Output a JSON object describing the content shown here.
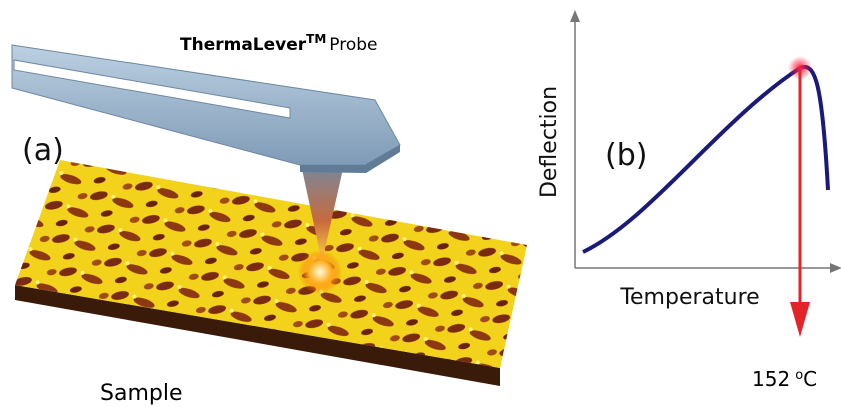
{
  "panel_a": {
    "title": {
      "name": "ThermaLever",
      "superscript": "TM",
      "suffix": "Probe"
    },
    "label": "(a)",
    "sample_label": "Sample"
  },
  "panel_b": {
    "label": "(b)",
    "y_axis_label": "Deflection",
    "x_axis_label": "Temperature",
    "peak": {
      "value": 152,
      "degree": "o",
      "unit": "C"
    }
  }
}
